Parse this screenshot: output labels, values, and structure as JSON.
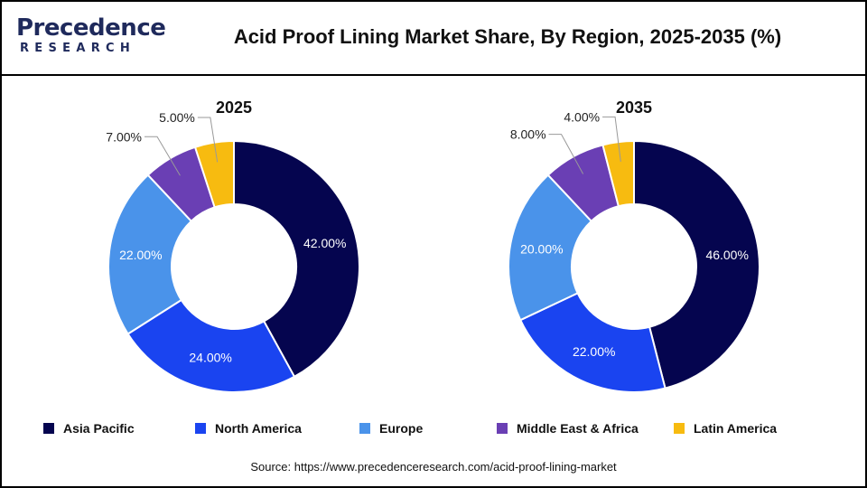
{
  "logo": {
    "line1": "Precedence",
    "line2": "RESEARCH"
  },
  "title": "Acid Proof Lining Market Share, By Region, 2025-2035 (%)",
  "source": "Source: https://www.precedenceresearch.com/acid-proof-lining-market",
  "colors": {
    "Asia Pacific": "#05054f",
    "North America": "#1a44f0",
    "Europe": "#4a93ea",
    "Middle East & Africa": "#6a3fb4",
    "Latin America": "#f7bb10"
  },
  "legend": [
    "Asia Pacific",
    "North America",
    "Europe",
    "Middle East & Africa",
    "Latin America"
  ],
  "chart_data": [
    {
      "type": "donut",
      "title": "2025",
      "categories": [
        "Asia Pacific",
        "North America",
        "Europe",
        "Middle East & Africa",
        "Latin America"
      ],
      "values": [
        42.0,
        24.0,
        22.0,
        7.0,
        5.0
      ],
      "labels": [
        "42.00%",
        "24.00%",
        "22.00%",
        "7.00%",
        "5.00%"
      ]
    },
    {
      "type": "donut",
      "title": "2035",
      "categories": [
        "Asia Pacific",
        "North America",
        "Europe",
        "Middle East & Africa",
        "Latin America"
      ],
      "values": [
        46.0,
        22.0,
        20.0,
        8.0,
        4.0
      ],
      "labels": [
        "46.00%",
        "22.00%",
        "20.00%",
        "8.00%",
        "4.00%"
      ]
    }
  ]
}
